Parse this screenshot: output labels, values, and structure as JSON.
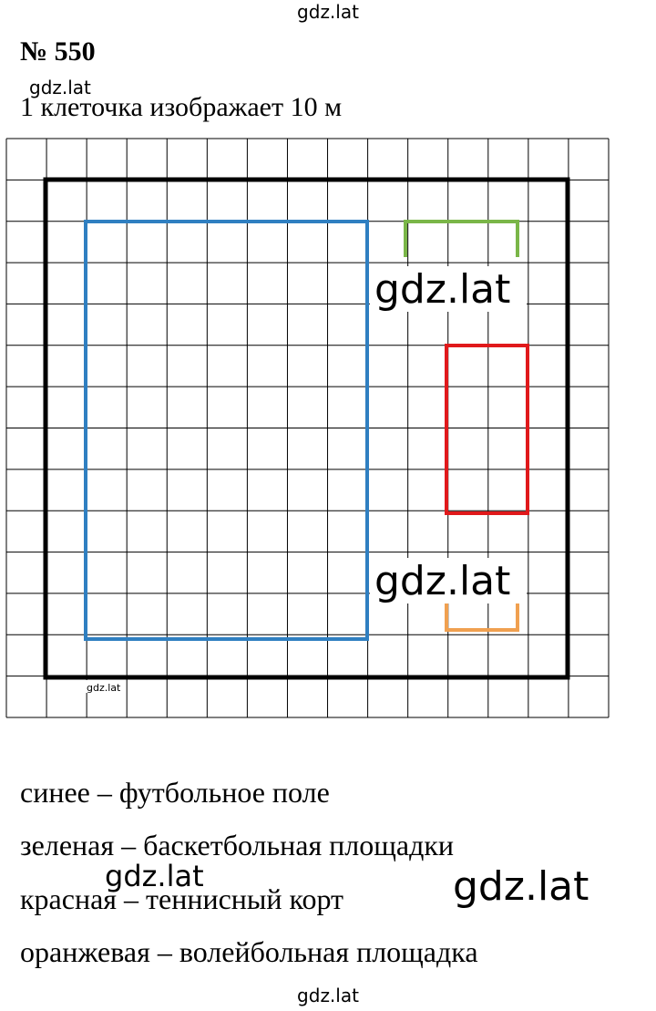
{
  "header": {
    "number": "№ 550",
    "note": "1 клеточка изображает 10 м"
  },
  "legend": [
    "синее – футбольное поле",
    "зеленая – баскетбольная площадки",
    "красная – теннисный корт",
    "оранжевая – волейбольная площадка"
  ],
  "watermarks": [
    "gdz.lat",
    "gdz.lat",
    "gdz.lat",
    "gdz.lat",
    "gdz.lat",
    "gdz.lat",
    "gdz.lat",
    "gdz.lat"
  ]
}
